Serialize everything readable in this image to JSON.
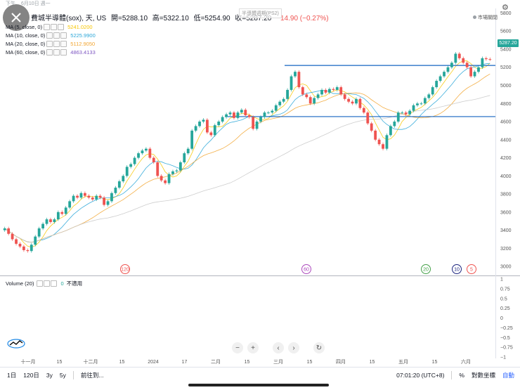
{
  "statusbar": {
    "time": "下午",
    "date": "6月10日 週一"
  },
  "header": {
    "symbol": "費城半導體(sox), 天, US",
    "open_label": "開=5288.10",
    "high_label": "高=5322.10",
    "low_label": "低=5254.90",
    "close_label": "收=5287.20",
    "change_label": "−14.90 (−0.27%)"
  },
  "watermark": "半導體週期(PS2)",
  "market_tag": "市場關閉",
  "ma": [
    {
      "label": "MA (5, close, 0)",
      "value": "5241.0200",
      "color": "#f7c600"
    },
    {
      "label": "MA (10, close, 0)",
      "value": "5225.9900",
      "color": "#2aa6d8"
    },
    {
      "label": "MA (20, close, 0)",
      "value": "5112.9050",
      "color": "#f2a531"
    },
    {
      "label": "MA (60, close, 0)",
      "value": "4863.4133",
      "color": "#7e57c2"
    }
  ],
  "volume": {
    "label": "Volume (20)",
    "value": "0",
    "note": "不適用"
  },
  "price_tag": "5287.20",
  "colors": {
    "up": "#26a69a",
    "down": "#ef5350",
    "hline": "#1565c0",
    "ma60": "#c8c8c8"
  },
  "bottom": {
    "range_1d": "1日",
    "range_120d": "120日",
    "range_3y": "3y",
    "range_5y": "5y",
    "goto": "前往到...",
    "time": "07:01:20 (UTC+8)",
    "percent": "%",
    "log": "對數坐標",
    "auto": "自動"
  },
  "chart_data": {
    "type": "candlestick",
    "title": "費城半導體(sox), 天, US",
    "y_ticks": [
      3000,
      3200,
      3400,
      3600,
      3800,
      4000,
      4200,
      4400,
      4600,
      4800,
      5000,
      5200,
      5400,
      5600,
      5800
    ],
    "ylim": [
      2900,
      5850
    ],
    "x_ticks": [
      "十一月",
      "15",
      "十二月",
      "15",
      "2024",
      "17",
      "二月",
      "15",
      "三月",
      "15",
      "四月",
      "15",
      "五月",
      "15",
      "六月"
    ],
    "volume_ticks": [
      "1",
      "0.75",
      "0.5",
      "0.25",
      "0",
      "−0.25",
      "−0.5",
      "−0.75",
      "−1"
    ],
    "horizontal_lines": [
      5220,
      4655
    ],
    "markers": [
      {
        "label": "120",
        "color": "#ef5350"
      },
      {
        "label": "60",
        "color": "#ab47bc"
      },
      {
        "label": "20",
        "color": "#43a047"
      },
      {
        "label": "10",
        "color": "#1a237e"
      },
      {
        "label": "5",
        "color": "#ef5350"
      }
    ],
    "closes": [
      3420,
      3360,
      3300,
      3250,
      3220,
      3180,
      3170,
      3240,
      3330,
      3420,
      3470,
      3520,
      3490,
      3520,
      3600,
      3580,
      3650,
      3720,
      3780,
      3760,
      3810,
      3780,
      3760,
      3740,
      3780,
      3760,
      3680,
      3720,
      3810,
      3870,
      3940,
      4000,
      4100,
      4130,
      4200,
      4250,
      4280,
      4300,
      4200,
      4150,
      4000,
      3950,
      3920,
      4020,
      4050,
      4060,
      4150,
      4250,
      4300,
      4500,
      4550,
      4600,
      4620,
      4480,
      4450,
      4560,
      4600,
      4650,
      4680,
      4700,
      4640,
      4700,
      4730,
      4670,
      4650,
      4520,
      4600,
      4650,
      4700,
      4700,
      4720,
      4780,
      4820,
      4850,
      4950,
      5100,
      5150,
      4980,
      4900,
      4870,
      4800,
      4860,
      4900,
      4950,
      4920,
      4960,
      4950,
      4980,
      4900,
      4850,
      4820,
      4800,
      4850,
      4750,
      4700,
      4580,
      4500,
      4400,
      4350,
      4300,
      4450,
      4550,
      4600,
      4700,
      4700,
      4680,
      4720,
      4780,
      4800,
      4800,
      4860,
      4900,
      4980,
      5050,
      5100,
      5150,
      5200,
      5250,
      5350,
      5300,
      5250,
      5200,
      5100,
      5150,
      5200,
      5300,
      5290,
      5287
    ]
  }
}
